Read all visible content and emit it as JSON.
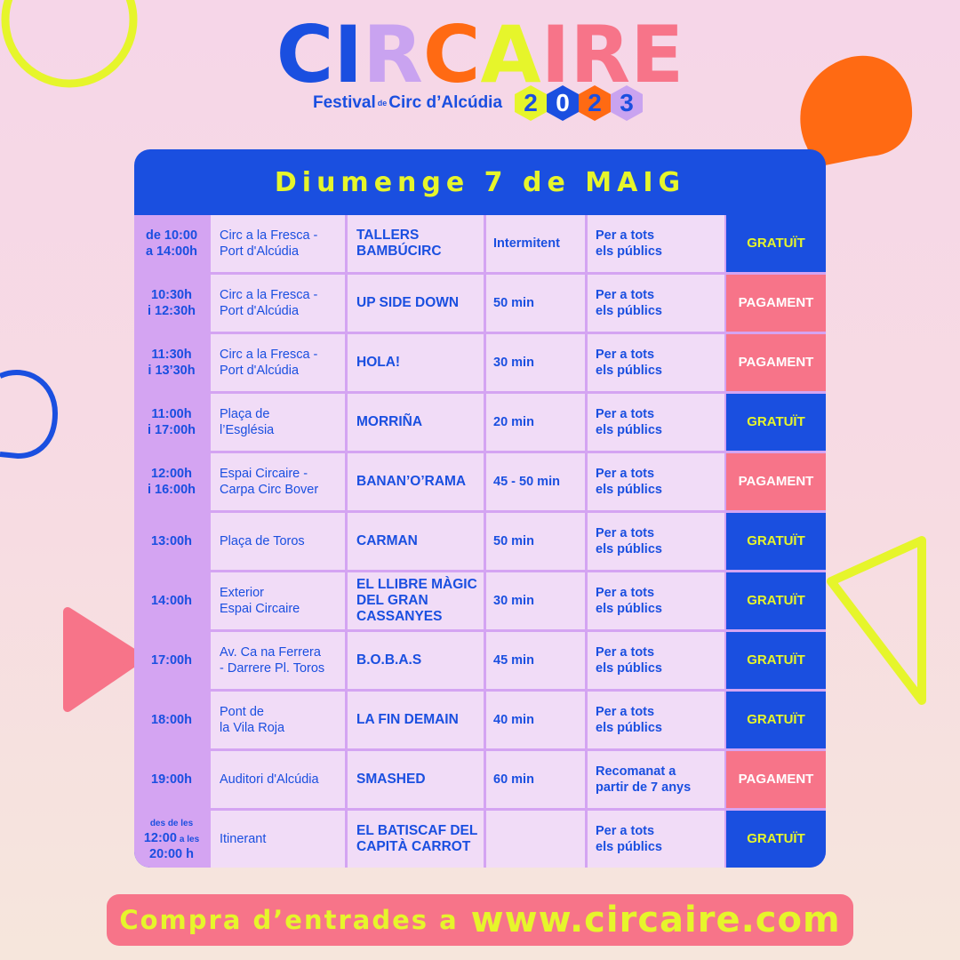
{
  "logo": {
    "letters": [
      {
        "ch": "C",
        "color": "#1a4fe0"
      },
      {
        "ch": "I",
        "color": "#1a4fe0"
      },
      {
        "ch": "R",
        "color": "#c9a3f0"
      },
      {
        "ch": "C",
        "color": "#ff6a13"
      },
      {
        "ch": "A",
        "color": "#e6f52b"
      },
      {
        "ch": "I",
        "color": "#f77489"
      },
      {
        "ch": "R",
        "color": "#f77489"
      },
      {
        "ch": "E",
        "color": "#f77489"
      }
    ],
    "festival": "Festival",
    "de": "de",
    "circ": "Circ d’Alcúdia",
    "year_digits": [
      {
        "d": "2",
        "bg": "#e6f52b",
        "fg": "#1a4fe0"
      },
      {
        "d": "0",
        "bg": "#1a4fe0",
        "fg": "#ffffff"
      },
      {
        "d": "2",
        "bg": "#ff6a13",
        "fg": "#1a4fe0"
      },
      {
        "d": "3",
        "bg": "#c9a3f0",
        "fg": "#1a4fe0"
      }
    ]
  },
  "table": {
    "title": "Diumenge 7 de MAIG",
    "rows": [
      {
        "time": "de 10:00\na 14:00h",
        "place": "Circ a la Fresca -\nPort d'Alcúdia",
        "show": "TALLERS\nBAMBÚCIRC",
        "duration": "Intermitent",
        "audience": "Per a tots\nels públics",
        "price": "GRATUÏT",
        "paid": false
      },
      {
        "time": "10:30h\ni 12:30h",
        "place": "Circ a la Fresca -\nPort d'Alcúdia",
        "show": "UP SIDE DOWN",
        "duration": "50 min",
        "audience": "Per a tots\nels públics",
        "price": "PAGAMENT",
        "paid": true
      },
      {
        "time": "11:30h\ni 13’30h",
        "place": "Circ a la Fresca -\nPort d'Alcúdia",
        "show": "HOLA!",
        "duration": "30 min",
        "audience": "Per a tots\nels públics",
        "price": "PAGAMENT",
        "paid": true
      },
      {
        "time": "11:00h\ni 17:00h",
        "place": "Plaça de\nl’Església",
        "show": "MORRIÑA",
        "duration": "20 min",
        "audience": "Per a tots\nels públics",
        "price": "GRATUÏT",
        "paid": false
      },
      {
        "time": "12:00h\ni 16:00h",
        "place": "Espai Circaire -\nCarpa Circ Bover",
        "show": "BANAN’O’RAMA",
        "duration": "45 - 50 min",
        "audience": "Per a tots\nels públics",
        "price": "PAGAMENT",
        "paid": true
      },
      {
        "time": "13:00h",
        "place": "Plaça de Toros",
        "show": "CARMAN",
        "duration": "50 min",
        "audience": "Per a tots\nels públics",
        "price": "GRATUÏT",
        "paid": false
      },
      {
        "time": "14:00h",
        "place": "Exterior\nEspai Circaire",
        "show": "EL LLIBRE MÀGIC\nDEL GRAN\nCASSANYES",
        "duration": "30 min",
        "audience": "Per a tots\nels públics",
        "price": "GRATUÏT",
        "paid": false
      },
      {
        "time": "17:00h",
        "place": "Av. Ca na Ferrera\n- Darrere Pl. Toros",
        "show": "B.O.B.A.S",
        "duration": "45 min",
        "audience": "Per a tots\nels públics",
        "price": "GRATUÏT",
        "paid": false
      },
      {
        "time": "18:00h",
        "place": "Pont de\nla Vila Roja",
        "show": "LA FIN DEMAIN",
        "duration": "40 min",
        "audience": "Per a tots\nels públics",
        "price": "GRATUÏT",
        "paid": false
      },
      {
        "time": "19:00h",
        "place": "Auditori d'Alcúdia",
        "show": "SMASHED",
        "duration": "60 min",
        "audience": "Recomanat a\npartir de 7 anys",
        "price": "PAGAMENT",
        "paid": true
      },
      {
        "time_parts": {
          "a": "des de les",
          "b": "12:00",
          "c": "a les",
          "d": "20:00 h"
        },
        "place": "Itinerant",
        "show": "EL BATISCAF DEL\nCAPITÀ CARROT",
        "duration": "",
        "audience": "Per a tots\nels públics",
        "price": "GRATUÏT",
        "paid": false
      }
    ]
  },
  "footer": {
    "text": "Compra d’entrades a",
    "url": "www.circaire.com"
  }
}
